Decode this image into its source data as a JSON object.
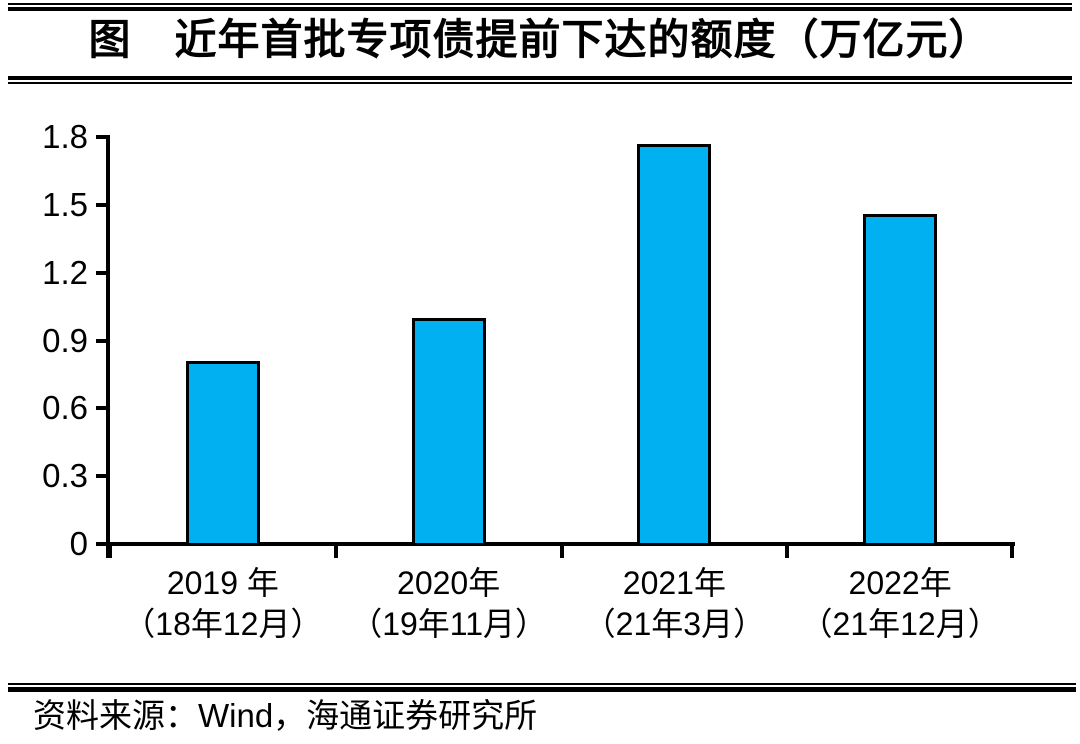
{
  "figure": {
    "title": "图　近年首批专项债提前下达的额度（万亿元）",
    "source_note": "资料来源：Wind，海通证券研究所"
  },
  "chart_data": {
    "type": "bar",
    "title": "图　近年首批专项债提前下达的额度（万亿元）",
    "unit": "万亿元",
    "categories": [
      "2019 年",
      "2020年",
      "2021年",
      "2022年"
    ],
    "category_notes": [
      "（18年12月）",
      "（19年11月）",
      "（21年3月）",
      "（21年12月）"
    ],
    "values": [
      0.81,
      1.0,
      1.77,
      1.46
    ],
    "ylim": [
      0,
      1.8
    ],
    "ytick_labels": [
      "0",
      "0.3",
      "0.6",
      "0.9",
      "1.2",
      "1.5",
      "1.8"
    ],
    "xlabel": "",
    "ylabel": "",
    "grid": false,
    "legend": "none",
    "bar_color": "#00B0F0",
    "bar_border_color": "#000000",
    "axis_color": "#000000",
    "background_color": "#FFFFFF"
  }
}
